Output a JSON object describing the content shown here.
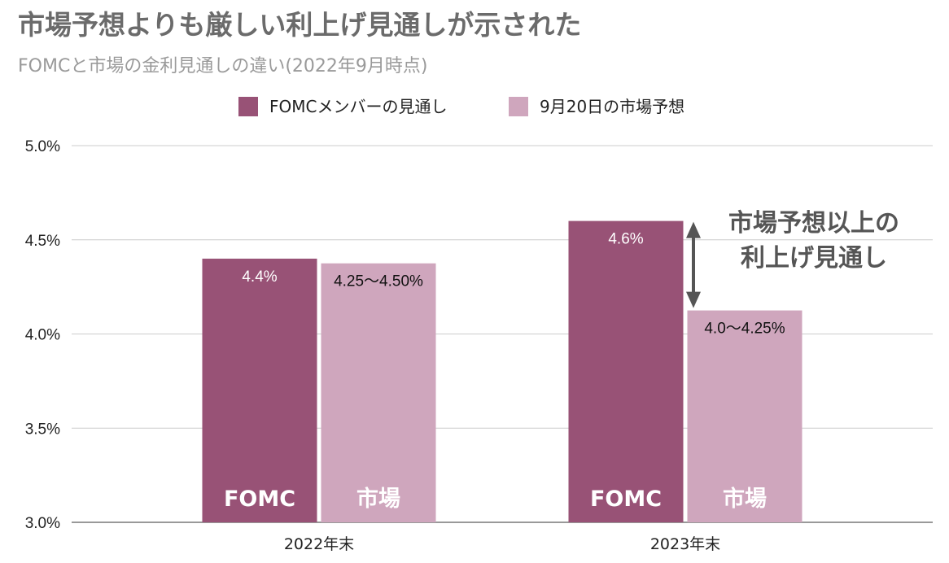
{
  "title": "市場予想よりも厳しい利上げ見通しが示された",
  "subtitle": "FOMCと市場の金利見通しの違い(2022年9月時点)",
  "colors": {
    "fomc": "#985276",
    "market": "#cfa6bd",
    "grid": "#cccccc",
    "arrow": "#555555"
  },
  "chart_data": {
    "type": "bar",
    "categories": [
      "2022年末",
      "2023年末"
    ],
    "series": [
      {
        "name": "FOMCメンバーの見通し",
        "values": [
          4.4,
          4.6
        ],
        "data_labels": [
          "4.4%",
          "4.6%"
        ],
        "bar_label": "FOMC"
      },
      {
        "name": "9月20日の市場予想",
        "values": [
          4.375,
          4.125
        ],
        "data_labels": [
          "4.25〜4.50%",
          "4.0〜4.25%"
        ],
        "bar_label": "市場"
      }
    ],
    "ylim": [
      3.0,
      5.0
    ],
    "yticks": [
      3.0,
      3.5,
      4.0,
      4.5,
      5.0
    ],
    "ytick_labels": [
      "3.0%",
      "3.5%",
      "4.0%",
      "4.5%",
      "5.0%"
    ],
    "grid": true,
    "legend_position": "top-center",
    "annotation": {
      "lines": [
        "市場予想以上の",
        "利上げ見通し"
      ],
      "category": "2023年末"
    }
  }
}
